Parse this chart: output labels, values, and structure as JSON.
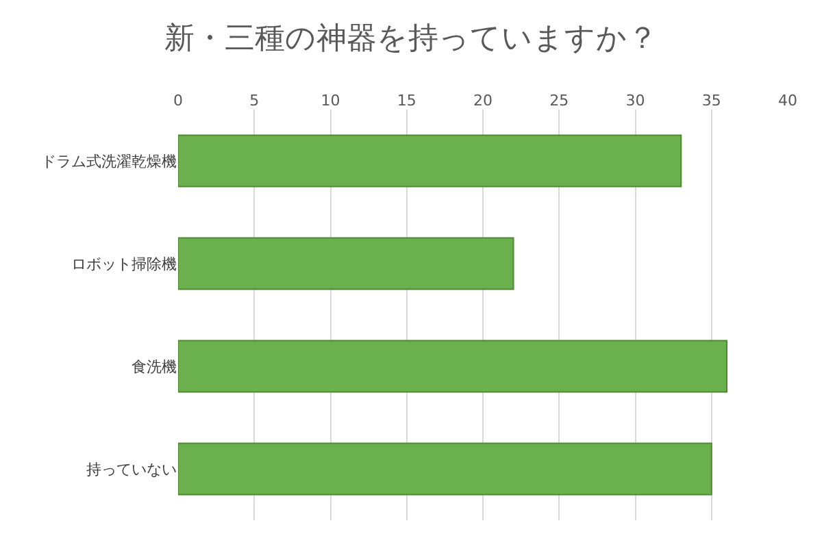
{
  "chart_data": {
    "type": "bar",
    "orientation": "horizontal",
    "title": "新・三種の神器を持っていますか？",
    "categories": [
      "ドラム式洗濯乾燥機",
      "ロボット掃除機",
      "食洗機",
      "持っていない"
    ],
    "values": [
      33,
      22,
      36,
      35
    ],
    "color": "#6ab04c",
    "xlim": [
      0,
      40
    ],
    "xticks": [
      0,
      5,
      10,
      15,
      20,
      25,
      30,
      35,
      40
    ],
    "grid": "x"
  }
}
